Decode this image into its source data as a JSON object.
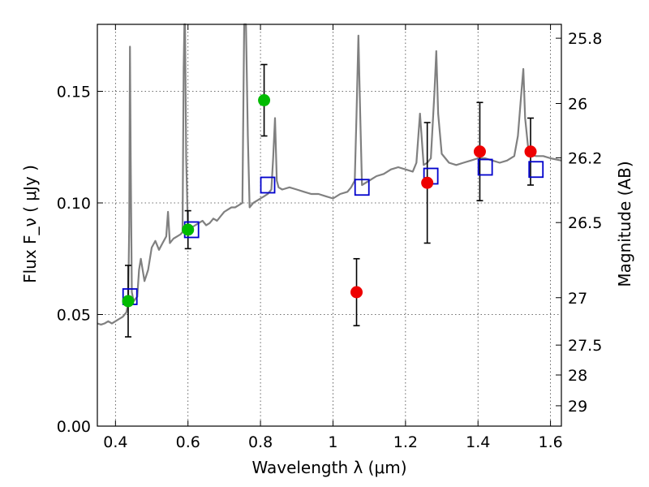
{
  "chart_data": {
    "type": "scatter",
    "xlabel": "Wavelength  λ (μm)",
    "ylabel": "Flux  F_ν  ( μJy )",
    "y2label": "Magnitude (AB)",
    "xlim": [
      0.35,
      1.63
    ],
    "ylim": [
      0.0,
      0.18
    ],
    "x_ticks": [
      {
        "value": 0.4,
        "label": "0.4"
      },
      {
        "value": 0.6,
        "label": "0.6"
      },
      {
        "value": 0.8,
        "label": "0.8"
      },
      {
        "value": 1.0,
        "label": "1"
      },
      {
        "value": 1.2,
        "label": "1.2"
      },
      {
        "value": 1.4,
        "label": "1.4"
      },
      {
        "value": 1.6,
        "label": "1.6"
      }
    ],
    "y_ticks": [
      {
        "value": 0.0,
        "label": "0.00"
      },
      {
        "value": 0.05,
        "label": "0.05"
      },
      {
        "value": 0.1,
        "label": "0.10"
      },
      {
        "value": 0.15,
        "label": "0.15"
      }
    ],
    "y2_ticks": [
      {
        "value": 25.8,
        "label": "25.8"
      },
      {
        "value": 26.0,
        "label": "26"
      },
      {
        "value": 26.2,
        "label": "26.2"
      },
      {
        "value": 26.5,
        "label": "26.5"
      },
      {
        "value": 27.0,
        "label": "27"
      },
      {
        "value": 27.5,
        "label": "27.5"
      },
      {
        "value": 28.0,
        "label": "28"
      },
      {
        "value": 29.0,
        "label": "29"
      }
    ],
    "grid": true,
    "colors": {
      "model": "#808080",
      "synthetic": "#0000cc",
      "optical": "#00bb00",
      "infrared": "#ee0000",
      "errorbar": "#000000"
    },
    "series": [
      {
        "name": "model_spectrum",
        "kind": "line",
        "points": [
          [
            0.35,
            0.046
          ],
          [
            0.36,
            0.0455
          ],
          [
            0.37,
            0.046
          ],
          [
            0.38,
            0.047
          ],
          [
            0.39,
            0.046
          ],
          [
            0.4,
            0.047
          ],
          [
            0.41,
            0.048
          ],
          [
            0.42,
            0.049
          ],
          [
            0.43,
            0.051
          ],
          [
            0.435,
            0.055
          ],
          [
            0.438,
            0.09
          ],
          [
            0.44,
            0.17
          ],
          [
            0.442,
            0.12
          ],
          [
            0.445,
            0.06
          ],
          [
            0.45,
            0.056
          ],
          [
            0.46,
            0.058
          ],
          [
            0.465,
            0.07
          ],
          [
            0.47,
            0.075
          ],
          [
            0.48,
            0.065
          ],
          [
            0.49,
            0.07
          ],
          [
            0.5,
            0.08
          ],
          [
            0.51,
            0.083
          ],
          [
            0.52,
            0.079
          ],
          [
            0.53,
            0.082
          ],
          [
            0.54,
            0.085
          ],
          [
            0.545,
            0.096
          ],
          [
            0.55,
            0.082
          ],
          [
            0.56,
            0.084
          ],
          [
            0.57,
            0.085
          ],
          [
            0.58,
            0.086
          ],
          [
            0.585,
            0.087
          ],
          [
            0.588,
            0.16
          ],
          [
            0.59,
            0.18
          ],
          [
            0.592,
            0.18
          ],
          [
            0.595,
            0.12
          ],
          [
            0.6,
            0.088
          ],
          [
            0.61,
            0.089
          ],
          [
            0.62,
            0.09
          ],
          [
            0.63,
            0.091
          ],
          [
            0.64,
            0.092
          ],
          [
            0.65,
            0.09
          ],
          [
            0.66,
            0.091
          ],
          [
            0.67,
            0.093
          ],
          [
            0.68,
            0.092
          ],
          [
            0.69,
            0.094
          ],
          [
            0.7,
            0.096
          ],
          [
            0.71,
            0.097
          ],
          [
            0.72,
            0.098
          ],
          [
            0.73,
            0.098
          ],
          [
            0.74,
            0.099
          ],
          [
            0.75,
            0.1
          ],
          [
            0.755,
            0.18
          ],
          [
            0.76,
            0.18
          ],
          [
            0.765,
            0.13
          ],
          [
            0.77,
            0.098
          ],
          [
            0.78,
            0.1
          ],
          [
            0.79,
            0.101
          ],
          [
            0.8,
            0.102
          ],
          [
            0.81,
            0.103
          ],
          [
            0.82,
            0.104
          ],
          [
            0.83,
            0.106
          ],
          [
            0.835,
            0.12
          ],
          [
            0.84,
            0.138
          ],
          [
            0.845,
            0.11
          ],
          [
            0.85,
            0.107
          ],
          [
            0.86,
            0.106
          ],
          [
            0.88,
            0.107
          ],
          [
            0.9,
            0.106
          ],
          [
            0.92,
            0.105
          ],
          [
            0.94,
            0.104
          ],
          [
            0.96,
            0.104
          ],
          [
            0.98,
            0.103
          ],
          [
            1.0,
            0.102
          ],
          [
            1.02,
            0.104
          ],
          [
            1.04,
            0.105
          ],
          [
            1.05,
            0.107
          ],
          [
            1.06,
            0.11
          ],
          [
            1.065,
            0.14
          ],
          [
            1.07,
            0.175
          ],
          [
            1.075,
            0.14
          ],
          [
            1.08,
            0.108
          ],
          [
            1.1,
            0.11
          ],
          [
            1.12,
            0.112
          ],
          [
            1.14,
            0.113
          ],
          [
            1.16,
            0.115
          ],
          [
            1.18,
            0.116
          ],
          [
            1.2,
            0.115
          ],
          [
            1.22,
            0.114
          ],
          [
            1.23,
            0.118
          ],
          [
            1.24,
            0.14
          ],
          [
            1.25,
            0.117
          ],
          [
            1.26,
            0.118
          ],
          [
            1.27,
            0.12
          ],
          [
            1.28,
            0.15
          ],
          [
            1.285,
            0.168
          ],
          [
            1.29,
            0.14
          ],
          [
            1.3,
            0.122
          ],
          [
            1.32,
            0.118
          ],
          [
            1.34,
            0.117
          ],
          [
            1.36,
            0.118
          ],
          [
            1.38,
            0.119
          ],
          [
            1.4,
            0.12
          ],
          [
            1.42,
            0.12
          ],
          [
            1.44,
            0.119
          ],
          [
            1.46,
            0.118
          ],
          [
            1.48,
            0.119
          ],
          [
            1.5,
            0.121
          ],
          [
            1.51,
            0.13
          ],
          [
            1.52,
            0.15
          ],
          [
            1.525,
            0.16
          ],
          [
            1.53,
            0.138
          ],
          [
            1.54,
            0.122
          ],
          [
            1.56,
            0.121
          ],
          [
            1.58,
            0.121
          ],
          [
            1.6,
            0.12
          ],
          [
            1.63,
            0.119
          ]
        ]
      },
      {
        "name": "synthetic_photometry",
        "kind": "square",
        "points": [
          [
            0.44,
            0.058
          ],
          [
            0.61,
            0.088
          ],
          [
            0.82,
            0.108
          ],
          [
            1.08,
            0.107
          ],
          [
            1.27,
            0.112
          ],
          [
            1.42,
            0.116
          ],
          [
            1.56,
            0.115
          ]
        ]
      },
      {
        "name": "optical_detections",
        "kind": "circle",
        "points": [
          {
            "x": 0.435,
            "y": 0.056,
            "err": 0.016
          },
          {
            "x": 0.6,
            "y": 0.088,
            "err": 0.0085
          },
          {
            "x": 0.81,
            "y": 0.146,
            "err": 0.016
          }
        ]
      },
      {
        "name": "infrared_detections",
        "kind": "circle",
        "points": [
          {
            "x": 1.065,
            "y": 0.06,
            "err": 0.015
          },
          {
            "x": 1.26,
            "y": 0.109,
            "err": 0.027
          },
          {
            "x": 1.405,
            "y": 0.123,
            "err": 0.022
          },
          {
            "x": 1.545,
            "y": 0.123,
            "err": 0.015
          }
        ]
      }
    ]
  }
}
